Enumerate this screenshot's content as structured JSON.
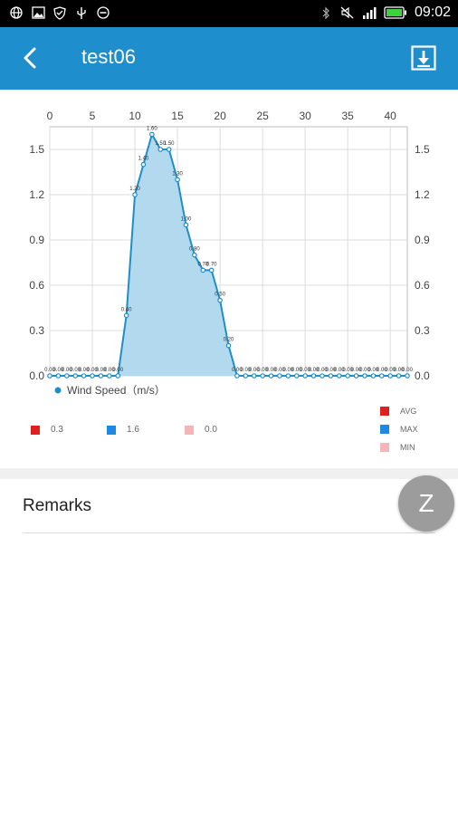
{
  "status_bar": {
    "time": "09:02",
    "left_icons": [
      "globe-icon",
      "image-icon",
      "shield-icon",
      "usb-icon",
      "minus-circle-icon"
    ],
    "right_icons": [
      "bluetooth-icon",
      "mute-icon",
      "signal-icon",
      "battery-icon"
    ]
  },
  "app_bar": {
    "title": "test06",
    "back_icon": "back-arrow-icon",
    "download_icon": "download-icon",
    "color": "#1e8ecd"
  },
  "chart_data": {
    "type": "area",
    "xlim": [
      0,
      42
    ],
    "ylim": [
      0,
      1.65
    ],
    "x_ticks": [
      "0",
      "5",
      "10",
      "15",
      "20",
      "25",
      "30",
      "35",
      "40"
    ],
    "y_ticks": [
      "0.0",
      "0.3",
      "0.6",
      "0.9",
      "1.2",
      "1.5"
    ],
    "series": [
      {
        "name": "Wind Speed (m/s)",
        "color": "#1e8ec9",
        "fill": "#b3d9ee",
        "x": [
          0,
          1,
          2,
          3,
          4,
          5,
          6,
          7,
          8,
          9,
          10,
          11,
          12,
          13,
          14,
          15,
          16,
          17,
          18,
          19,
          20,
          21,
          22,
          23,
          24,
          25,
          26,
          27,
          28,
          29,
          30,
          31,
          32,
          33,
          34,
          35,
          36,
          37,
          38,
          39,
          40,
          41,
          42
        ],
        "y": [
          0,
          0,
          0,
          0,
          0,
          0,
          0,
          0,
          0,
          0.4,
          1.2,
          1.4,
          1.6,
          1.5,
          1.5,
          1.3,
          1.0,
          0.8,
          0.7,
          0.7,
          0.5,
          0.2,
          0,
          0,
          0,
          0,
          0,
          0,
          0,
          0,
          0,
          0,
          0,
          0,
          0,
          0,
          0,
          0,
          0,
          0,
          0,
          0,
          0
        ],
        "labels": [
          "0.00",
          "0.00",
          "0.00",
          "0.00",
          "0.00",
          "0.00",
          "0.00",
          "0.00",
          "0.00",
          "0.40",
          "1.20",
          "1.40",
          "1.60",
          "1.50",
          "1.50",
          "1.30",
          "1.00",
          "0.80",
          "0.70",
          "0.70",
          "0.50",
          "0.20",
          "0.00",
          "0.00",
          "0.00",
          "0.00",
          "0.00",
          "0.00",
          "0.00",
          "0.00",
          "0.00",
          "0.00",
          "0.00",
          "0.00",
          "0.00",
          "0.00",
          "0.00",
          "0.00",
          "0.00",
          "0.00",
          "0.00",
          "0.00",
          "0.00"
        ]
      }
    ],
    "legend_label": "Wind Speed（m/s）",
    "stats": [
      {
        "label": "0.3",
        "color": "#e02020",
        "name": "AVG"
      },
      {
        "label": "1.6",
        "color": "#1e88e5",
        "name": "MAX"
      },
      {
        "label": "0.0",
        "color": "#f4b6b8",
        "name": "MIN"
      }
    ]
  },
  "remarks": {
    "label": "Remarks"
  },
  "fab": {
    "label": "Z"
  }
}
